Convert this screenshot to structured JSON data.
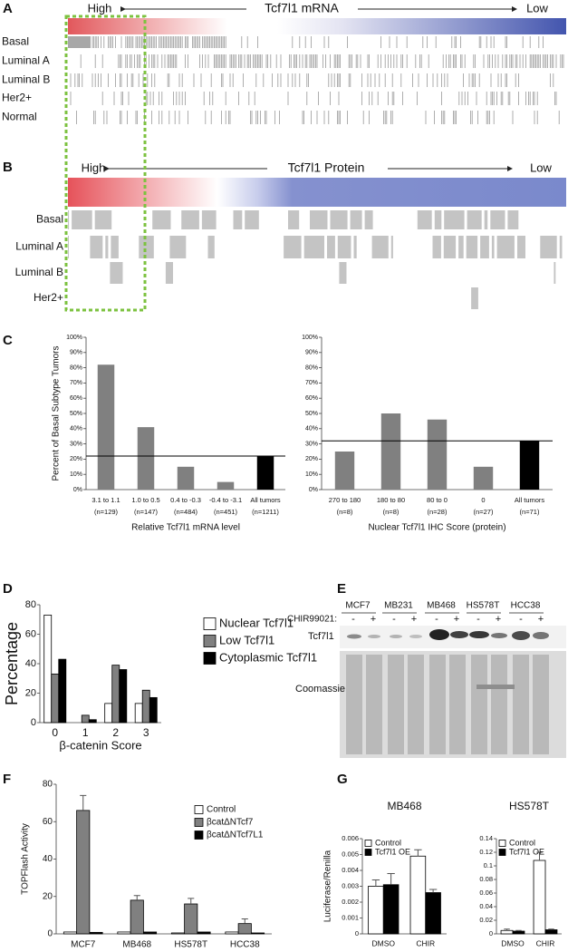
{
  "panel_labels": [
    "A",
    "B",
    "C",
    "D",
    "E",
    "F",
    "G"
  ],
  "heatmaps": [
    {
      "high": "High",
      "title": "Tcf7l1 mRNA",
      "low": "Low",
      "rows": [
        "Basal",
        "Luminal A",
        "Luminal B",
        "Her2+",
        "Normal"
      ]
    },
    {
      "high": "High",
      "title": "Tcf7l1 Protein",
      "low": "Low",
      "rows": [
        "Basal",
        "Luminal A",
        "Luminal B",
        "Her2+"
      ]
    }
  ],
  "blot": {
    "cell_lines": [
      "MCF7",
      "MB231",
      "MB468",
      "HS578T",
      "HCC38"
    ],
    "treatment_label": "CHIR99021:",
    "signs": [
      "-",
      "+"
    ],
    "band_label": "Tcf7l1",
    "stain_label": "Coomassie"
  },
  "chart_data": [
    {
      "type": "bar",
      "ylabel": "Percent of Basal Subtype Tumors",
      "xlabel": "Relative Tcf7l1 mRNA level",
      "categories": [
        "3.1 to 1.1",
        "1.0 to 0.5",
        "0.4 to -0.3",
        "-0.4 to -3.1",
        "All tumors"
      ],
      "counts": [
        "(n=129)",
        "(n=147)",
        "(n=484)",
        "(n=451)",
        "(n=1211)"
      ],
      "values": [
        82,
        41,
        15,
        5,
        22
      ],
      "colors": [
        "#808080",
        "#808080",
        "#808080",
        "#808080",
        "#000000"
      ],
      "reference_line": 22,
      "ylim": [
        0,
        100
      ],
      "yticks": [
        {
          "value": 0,
          "label": "0%"
        },
        {
          "value": 10,
          "label": "10%"
        },
        {
          "value": 20,
          "label": "20%"
        },
        {
          "value": 30,
          "label": "30%"
        },
        {
          "value": 40,
          "label": "40%"
        },
        {
          "value": 50,
          "label": "50%"
        },
        {
          "value": 60,
          "label": "60%"
        },
        {
          "value": 70,
          "label": "70%"
        },
        {
          "value": 80,
          "label": "80%"
        },
        {
          "value": 90,
          "label": "90%"
        },
        {
          "value": 100,
          "label": "100%"
        }
      ]
    },
    {
      "type": "bar",
      "xlabel": "Nuclear Tcf7l1 IHC Score (protein)",
      "categories": [
        "270 to 180",
        "180 to 80",
        "80 to 0",
        "0",
        "All tumors"
      ],
      "counts": [
        "(n=8)",
        "(n=8)",
        "(n=28)",
        "(n=27)",
        "(n=71)"
      ],
      "values": [
        25,
        50,
        46,
        15,
        32
      ],
      "colors": [
        "#808080",
        "#808080",
        "#808080",
        "#808080",
        "#000000"
      ],
      "reference_line": 32,
      "ylim": [
        0,
        100
      ],
      "yticks": [
        {
          "value": 0,
          "label": "0%"
        },
        {
          "value": 10,
          "label": "10%"
        },
        {
          "value": 20,
          "label": "20%"
        },
        {
          "value": 30,
          "label": "30%"
        },
        {
          "value": 40,
          "label": "40%"
        },
        {
          "value": 50,
          "label": "50%"
        },
        {
          "value": 60,
          "label": "60%"
        },
        {
          "value": 70,
          "label": "70%"
        },
        {
          "value": 80,
          "label": "80%"
        },
        {
          "value": 90,
          "label": "90%"
        },
        {
          "value": 100,
          "label": "100%"
        }
      ]
    },
    {
      "type": "grouped-bar",
      "ylabel": "Percentage",
      "xlabel": "β-catenin Score",
      "categories": [
        "0",
        "1",
        "2",
        "3"
      ],
      "series": [
        {
          "name": "Nuclear Tcf7l1",
          "color": "#ffffff",
          "values": [
            73,
            0,
            13,
            13
          ]
        },
        {
          "name": "Low Tcf7l1",
          "color": "#808080",
          "values": [
            33,
            5,
            39,
            22
          ]
        },
        {
          "name": "Cytoplasmic Tcf7l1",
          "color": "#000000",
          "values": [
            43,
            2,
            36,
            17
          ]
        }
      ],
      "ylim": [
        0,
        80
      ],
      "yticks": [
        0,
        20,
        40,
        60,
        80
      ],
      "legend": "upper right"
    },
    {
      "type": "grouped-bar",
      "ylabel": "TOPFlash Activity",
      "categories": [
        "MCF7",
        "MB468",
        "HS578T",
        "HCC38"
      ],
      "series": [
        {
          "name": "Control",
          "color": "#ffffff",
          "values": [
            1,
            1,
            0.5,
            1
          ]
        },
        {
          "name": "βcatΔNTcf7",
          "color": "#808080",
          "values": [
            66,
            18,
            16,
            5.5
          ],
          "errors": [
            8,
            2.5,
            3,
            2.5
          ]
        },
        {
          "name": "βcatΔNTcf7L1",
          "color": "#000000",
          "values": [
            0.8,
            1,
            1,
            0.5
          ]
        }
      ],
      "ylim": [
        0,
        80
      ],
      "yticks": [
        0,
        20,
        40,
        60,
        80
      ],
      "legend": "upper right"
    },
    {
      "type": "grouped-bar",
      "title": "MB468",
      "ylabel": "Luciferase/Renilla",
      "categories": [
        "DMSO",
        "CHIR"
      ],
      "series": [
        {
          "name": "Control",
          "color": "#ffffff",
          "values": [
            0.003,
            0.0049
          ],
          "errors": [
            0.0004,
            0.0004
          ]
        },
        {
          "name": "Tcf7l1 OE",
          "color": "#000000",
          "values": [
            0.0031,
            0.0026
          ],
          "errors": [
            0.0007,
            0.0002
          ]
        }
      ],
      "ylim": [
        0,
        0.006
      ],
      "yticks": [
        0,
        0.001,
        0.002,
        0.003,
        0.004,
        0.005,
        0.006
      ],
      "legend": "upper left"
    },
    {
      "type": "grouped-bar",
      "title": "HS578T",
      "categories": [
        "DMSO",
        "CHIR"
      ],
      "series": [
        {
          "name": "Control",
          "color": "#ffffff",
          "values": [
            0.005,
            0.108
          ],
          "errors": [
            0.002,
            0.012
          ]
        },
        {
          "name": "Tcf7l1 OE",
          "color": "#000000",
          "values": [
            0.004,
            0.006
          ],
          "errors": [
            0.001,
            0.001
          ]
        }
      ],
      "ylim": [
        0,
        0.14
      ],
      "yticks": [
        0,
        0.02,
        0.04,
        0.06,
        0.08,
        0.1,
        0.12,
        0.14
      ],
      "legend": "upper left"
    }
  ]
}
